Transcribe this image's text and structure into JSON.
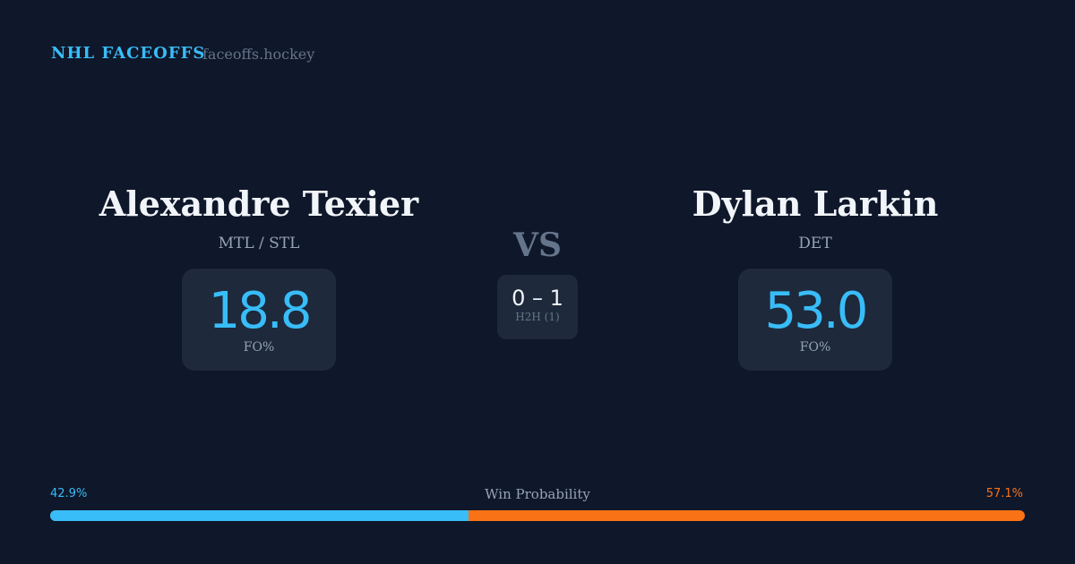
{
  "header": {
    "brand": "NHL FACEOFFS",
    "site": "faceoffs.hockey"
  },
  "left": {
    "name": "Alexandre Texier",
    "team": "MTL / STL",
    "fo_value": "18.8",
    "fo_label": "FO%"
  },
  "right": {
    "name": "Dylan Larkin",
    "team": "DET",
    "fo_value": "53.0",
    "fo_label": "FO%"
  },
  "middle": {
    "vs": "VS",
    "h2h_score": "0 – 1",
    "h2h_label": "H2H (1)"
  },
  "win_probability": {
    "label": "Win Probability",
    "left_text": "42.9%",
    "right_text": "57.1%",
    "left_value": 42.9,
    "right_value": 57.1,
    "left_color": "#38bdf8",
    "right_color": "#f97316"
  }
}
